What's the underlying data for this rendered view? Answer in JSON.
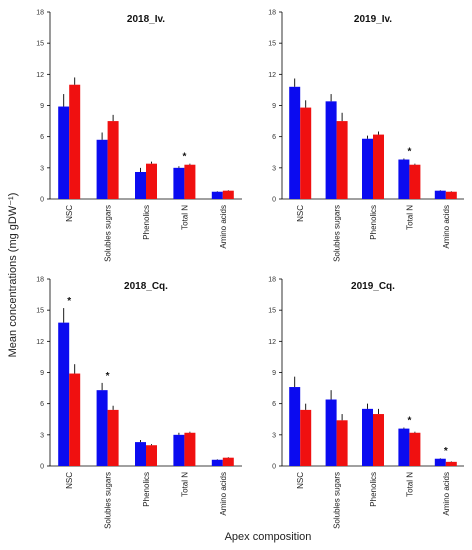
{
  "figure": {
    "ylabel": "Mean concentrations  (mg  gDW⁻¹)",
    "xlabel": "Apex composition"
  },
  "colors": {
    "series_a": "#0b0bf0",
    "series_b": "#f01010",
    "error": "#000000"
  },
  "chart_data": [
    {
      "type": "bar",
      "title": "2018_Iv.",
      "categories": [
        "NSC",
        "Solubles sugars",
        "Phenolics",
        "Total N",
        "Amino acids"
      ],
      "ylim": [
        0,
        18
      ],
      "yticks": [
        "0",
        "3",
        "6",
        "9",
        "12",
        "15",
        "18"
      ],
      "series": [
        {
          "values": [
            8.9,
            5.7,
            2.6,
            3.0,
            0.7
          ],
          "errors": [
            1.2,
            0.7,
            0.4,
            0.15,
            0.05
          ]
        },
        {
          "values": [
            11.0,
            7.5,
            3.4,
            3.3,
            0.8
          ],
          "errors": [
            0.7,
            0.6,
            0.2,
            0.1,
            0.05
          ]
        }
      ],
      "annotations": [
        {
          "category": "Total N",
          "text": "*"
        }
      ]
    },
    {
      "type": "bar",
      "title": "2019_Iv.",
      "categories": [
        "NSC",
        "Solubles sugars",
        "Phenolics",
        "Total N",
        "Amino acids"
      ],
      "ylim": [
        0,
        18
      ],
      "yticks": [
        "0",
        "3",
        "6",
        "9",
        "12",
        "15",
        "18"
      ],
      "series": [
        {
          "values": [
            10.8,
            9.4,
            5.8,
            3.8,
            0.8
          ],
          "errors": [
            0.8,
            0.7,
            0.3,
            0.1,
            0.05
          ]
        },
        {
          "values": [
            8.8,
            7.5,
            6.2,
            3.3,
            0.7
          ],
          "errors": [
            0.7,
            0.8,
            0.3,
            0.1,
            0.05
          ]
        }
      ],
      "annotations": [
        {
          "category": "Total N",
          "text": "*"
        }
      ]
    },
    {
      "type": "bar",
      "title": "2018_Cq.",
      "categories": [
        "NSC",
        "Solubles sugars",
        "Phenolics",
        "Total N",
        "Amino acids"
      ],
      "ylim": [
        0,
        18
      ],
      "yticks": [
        "0",
        "3",
        "6",
        "9",
        "12",
        "15",
        "18"
      ],
      "series": [
        {
          "values": [
            13.8,
            7.3,
            2.3,
            3.0,
            0.6
          ],
          "errors": [
            1.4,
            0.7,
            0.2,
            0.2,
            0.05
          ]
        },
        {
          "values": [
            8.9,
            5.4,
            2.0,
            3.2,
            0.8
          ],
          "errors": [
            0.9,
            0.4,
            0.1,
            0.1,
            0.05
          ]
        }
      ],
      "annotations": [
        {
          "category": "NSC",
          "text": "*"
        },
        {
          "category": "Solubles sugars",
          "text": "*"
        }
      ]
    },
    {
      "type": "bar",
      "title": "2019_Cq.",
      "categories": [
        "NSC",
        "Solubles sugars",
        "Phenolics",
        "Total N",
        "Amino acids"
      ],
      "ylim": [
        0,
        18
      ],
      "yticks": [
        "0",
        "3",
        "6",
        "9",
        "12",
        "15",
        "18"
      ],
      "series": [
        {
          "values": [
            7.6,
            6.4,
            5.5,
            3.6,
            0.7
          ],
          "errors": [
            1.0,
            0.9,
            0.5,
            0.1,
            0.05
          ]
        },
        {
          "values": [
            5.4,
            4.4,
            5.0,
            3.2,
            0.4
          ],
          "errors": [
            0.6,
            0.6,
            0.5,
            0.1,
            0.05
          ]
        }
      ],
      "annotations": [
        {
          "category": "Total N",
          "text": "*"
        },
        {
          "category": "Amino acids",
          "text": "*"
        }
      ]
    }
  ]
}
